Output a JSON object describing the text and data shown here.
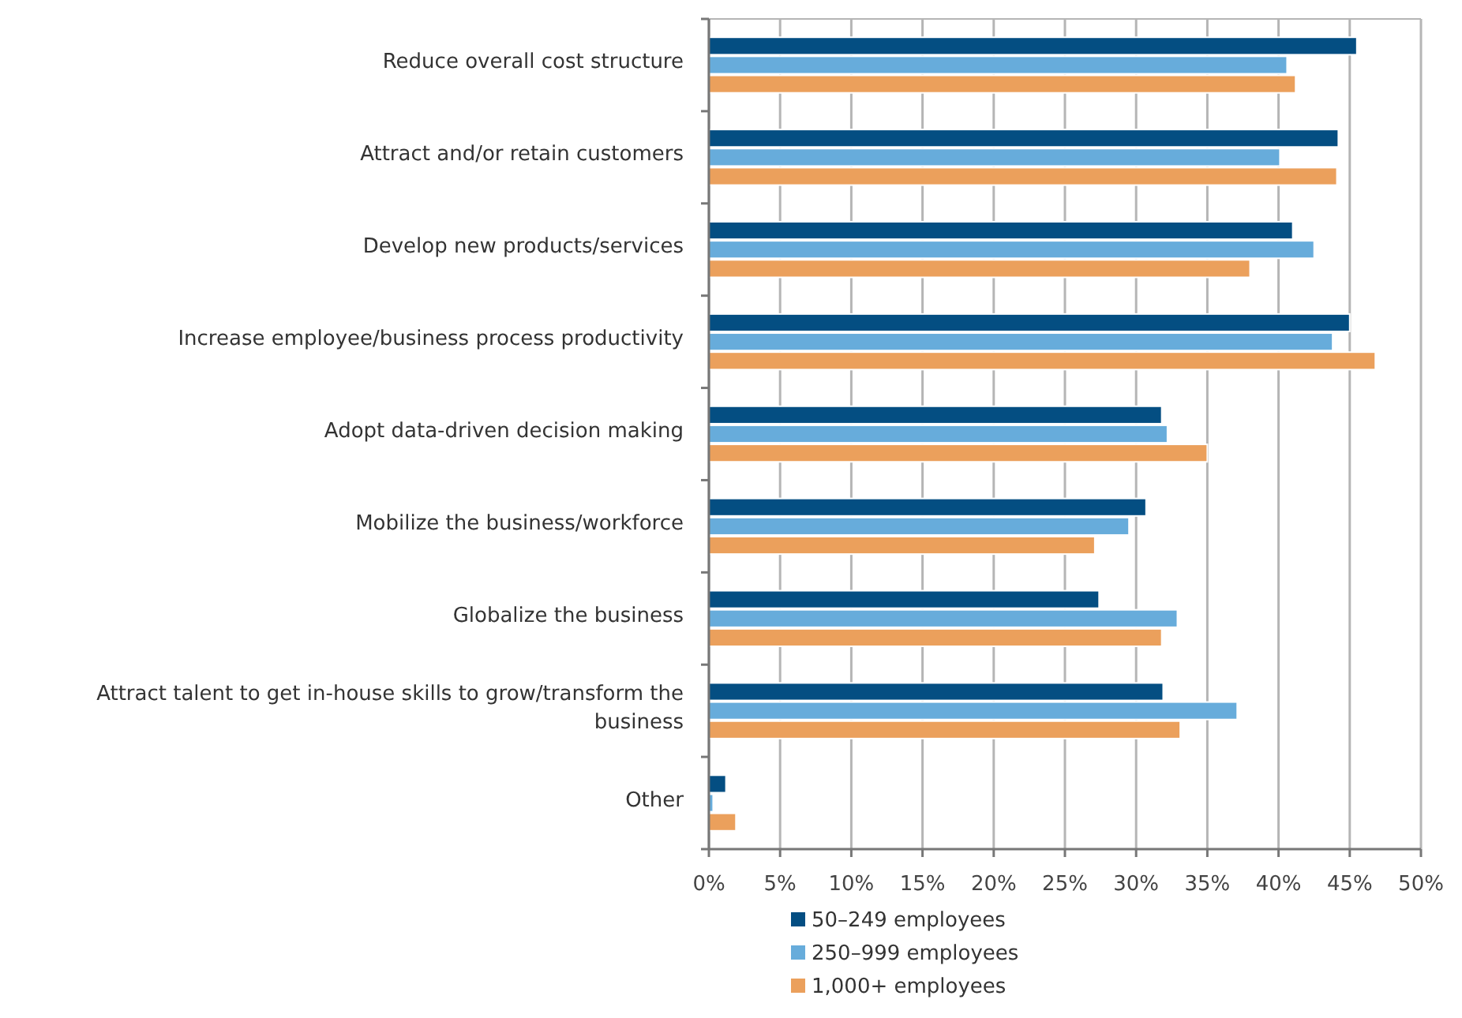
{
  "chart_data": {
    "type": "bar",
    "orientation": "horizontal",
    "categories": [
      "Reduce overall cost structure",
      "Attract and/or retain customers",
      "Develop new products/services",
      "Increase employee/business process productivity",
      "Adopt data-driven decision making",
      "Mobilize the business/workforce",
      "Globalize the business",
      "Attract talent to get in-house skills to grow/transform the business",
      "Other"
    ],
    "series": [
      {
        "name": "50–249 employees",
        "color": "#044e82",
        "values": [
          45.5,
          44.2,
          41.0,
          45.0,
          31.8,
          30.7,
          27.4,
          31.9,
          1.2
        ]
      },
      {
        "name": "250–999 employees",
        "color": "#67acdb",
        "values": [
          40.6,
          40.1,
          42.5,
          43.8,
          32.2,
          29.5,
          32.9,
          37.1,
          0.3
        ]
      },
      {
        "name": "1,000+ employees",
        "color": "#eba05c",
        "values": [
          41.2,
          44.1,
          38.0,
          46.8,
          35.0,
          27.1,
          31.8,
          33.1,
          1.9
        ]
      }
    ],
    "xlim": [
      0,
      50
    ],
    "xticks": [
      {
        "value": 0,
        "label": "0%"
      },
      {
        "value": 5,
        "label": "5%"
      },
      {
        "value": 10,
        "label": "10%"
      },
      {
        "value": 15,
        "label": "15%"
      },
      {
        "value": 20,
        "label": "20%"
      },
      {
        "value": 25,
        "label": "25%"
      },
      {
        "value": 30,
        "label": "30%"
      },
      {
        "value": 35,
        "label": "35%"
      },
      {
        "value": 40,
        "label": "40%"
      },
      {
        "value": 45,
        "label": "45%"
      },
      {
        "value": 50,
        "label": "50%"
      }
    ],
    "grid": "x",
    "legend": "bottom"
  }
}
